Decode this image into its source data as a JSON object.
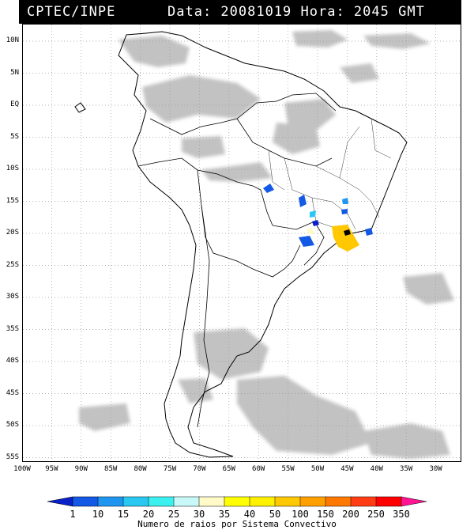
{
  "header": {
    "source": "CPTEC/INPE",
    "datetime": "Data: 20081019 Hora: 2045 GMT"
  },
  "lat_labels": [
    "10N",
    "5N",
    "EQ",
    "5S",
    "10S",
    "15S",
    "20S",
    "25S",
    "30S",
    "35S",
    "40S",
    "45S",
    "50S",
    "55S"
  ],
  "lon_labels": [
    "100W",
    "95W",
    "90W",
    "85W",
    "80W",
    "75W",
    "70W",
    "65W",
    "60W",
    "55W",
    "50W",
    "45W",
    "40W",
    "35W",
    "30W"
  ],
  "colorbar": {
    "labels": [
      "1",
      "10",
      "15",
      "20",
      "25",
      "30",
      "35",
      "40",
      "50",
      "100",
      "150",
      "200",
      "250",
      "350"
    ],
    "colors": [
      "#0a20c8",
      "#1458e6",
      "#1e96f0",
      "#28c8f0",
      "#3cf0f0",
      "#c8f8f8",
      "#fffac8",
      "#ffff00",
      "#fff000",
      "#ffc800",
      "#ffa000",
      "#ff7800",
      "#ff3c14",
      "#ff0000",
      "#ff1493"
    ],
    "caption": "Numero de raios por Sistema Convectivo"
  },
  "map": {
    "lon_range": [
      -100,
      -28
    ],
    "lat_range": [
      -56,
      12
    ],
    "grid": true,
    "features": [
      "south-america-coastline",
      "country-borders",
      "brazil-state-borders",
      "cloud-cover-grey",
      "convective-systems"
    ]
  }
}
